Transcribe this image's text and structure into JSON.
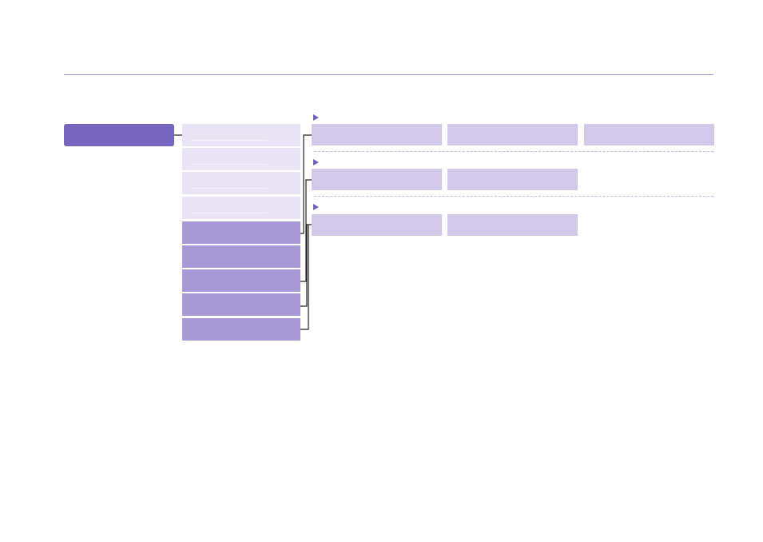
{
  "colors": {
    "rule": "#9b93c9",
    "root": "#7766c0",
    "pale": "#e9e5f5",
    "mid": "#a699d5",
    "cell": "#d2c9ea",
    "marker": "#6f5fb8",
    "dashed": "#c6bde3",
    "connector": "#222222"
  },
  "root": {
    "label": ""
  },
  "column": {
    "items": [
      {
        "shade": "pale",
        "label": ""
      },
      {
        "shade": "pale",
        "label": ""
      },
      {
        "shade": "pale",
        "label": ""
      },
      {
        "shade": "pale",
        "label": ""
      },
      {
        "shade": "mid",
        "label": ""
      },
      {
        "shade": "mid",
        "label": ""
      },
      {
        "shade": "mid",
        "label": ""
      },
      {
        "shade": "mid",
        "label": ""
      },
      {
        "shade": "mid",
        "label": ""
      }
    ]
  },
  "groups": [
    {
      "marker_icon": "triangle-right-icon",
      "cells": [
        {
          "label": ""
        },
        {
          "label": ""
        },
        {
          "label": ""
        }
      ]
    },
    {
      "marker_icon": "triangle-right-icon",
      "cells": [
        {
          "label": ""
        },
        {
          "label": ""
        }
      ]
    },
    {
      "marker_icon": "triangle-right-icon",
      "cells": [
        {
          "label": ""
        },
        {
          "label": ""
        }
      ]
    }
  ]
}
